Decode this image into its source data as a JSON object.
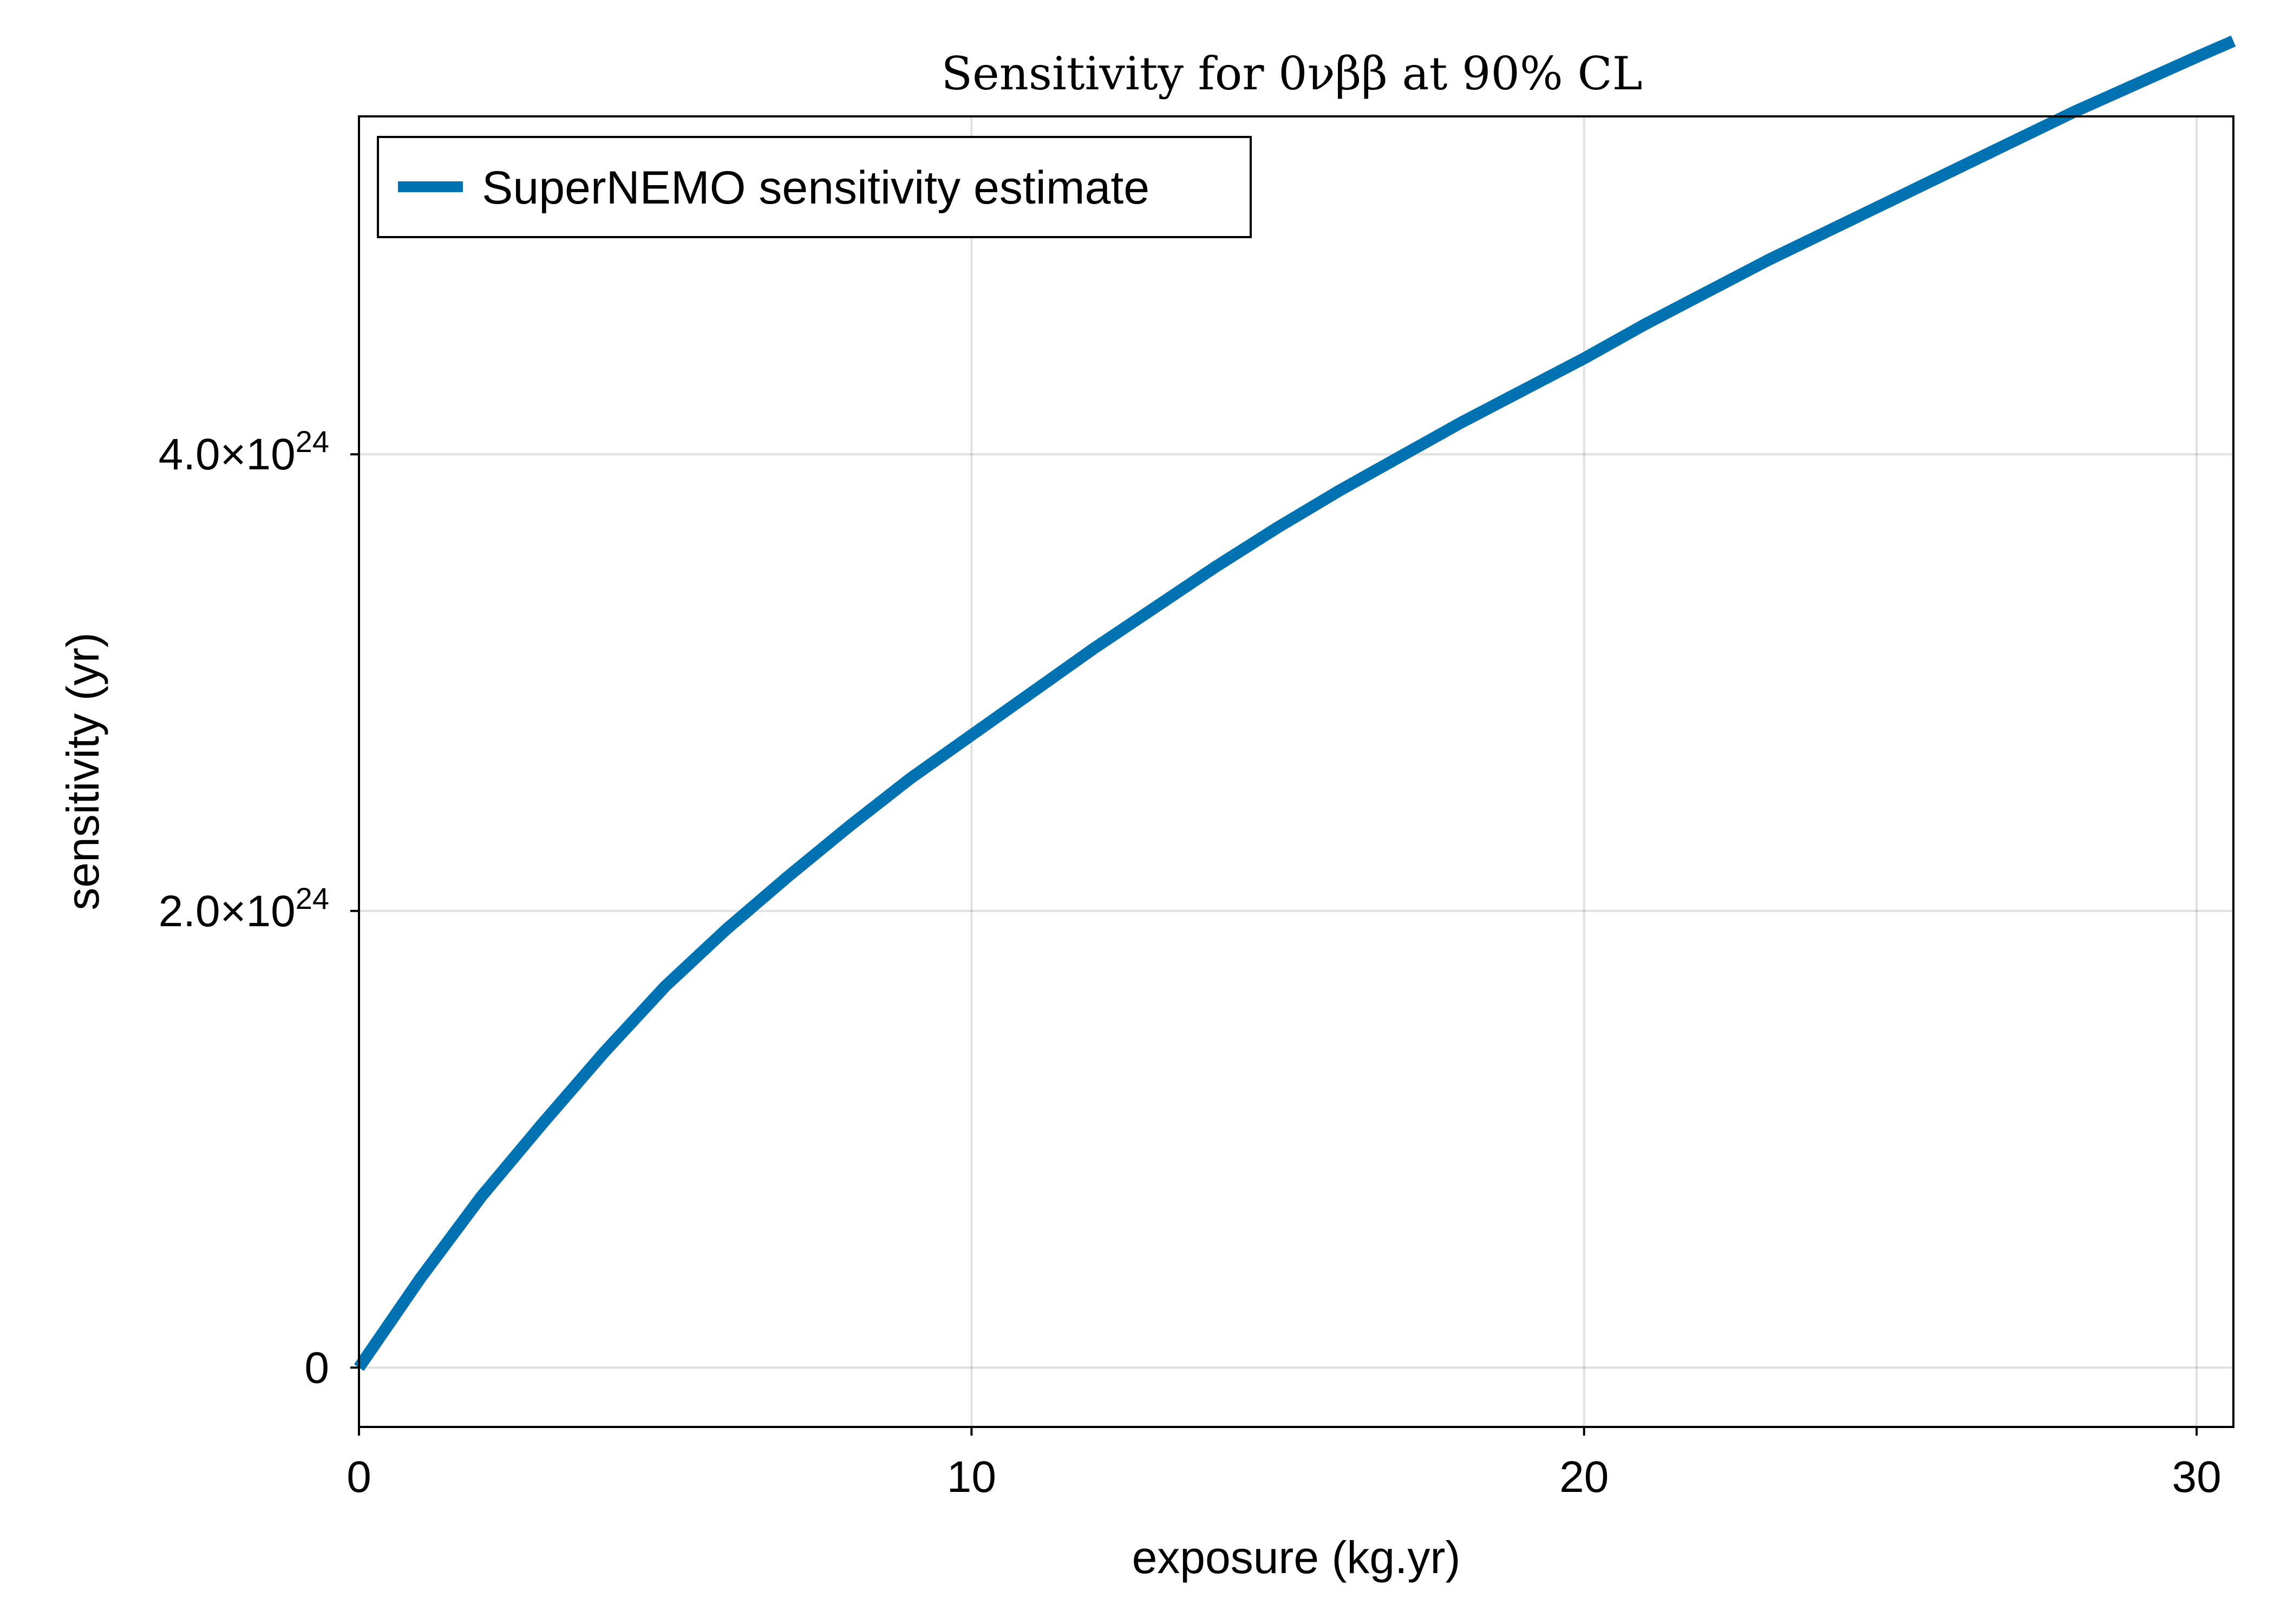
{
  "chart_data": {
    "type": "line",
    "title": "Sensitivity for 0νββ at 90% CL",
    "xlabel": "exposure (kg.yr)",
    "ylabel": "sensitivity (yr)",
    "xlim": [
      0,
      30.6
    ],
    "ylim": [
      -2.6e+23,
      5.48e+24
    ],
    "xticks": [
      {
        "value": 0,
        "label": "0"
      },
      {
        "value": 10,
        "label": "10"
      },
      {
        "value": 20,
        "label": "20"
      },
      {
        "value": 30,
        "label": "30"
      }
    ],
    "yticks": [
      {
        "value": 0,
        "label": "0",
        "mantissa": "",
        "exponent": ""
      },
      {
        "value": 2e+24,
        "label": "2.0×10²⁴",
        "mantissa": "2.0×10",
        "exponent": "24"
      },
      {
        "value": 4e+24,
        "label": "4.0×10²⁴",
        "mantissa": "4.0×10",
        "exponent": "24"
      }
    ],
    "grid": true,
    "legend_position": "top-left",
    "series": [
      {
        "name": "SuperNEMO sensitivity estimate",
        "color": "#0072b2",
        "x": [
          0,
          1,
          2,
          3,
          4,
          5,
          6,
          7,
          8,
          9,
          10,
          11,
          12,
          13,
          14,
          15,
          16,
          17,
          18,
          19,
          20,
          21,
          22,
          23,
          24,
          25,
          26,
          27,
          28,
          29,
          30,
          30.6
        ],
        "y": [
          0,
          3.9e+23,
          7.5e+23,
          1.07e+24,
          1.38e+24,
          1.67e+24,
          1.92e+24,
          2.15e+24,
          2.37e+24,
          2.58e+24,
          2.77e+24,
          2.96e+24,
          3.15e+24,
          3.33e+24,
          3.51e+24,
          3.68e+24,
          3.84e+24,
          3.99e+24,
          4.14e+24,
          4.28e+24,
          4.42e+24,
          4.57e+24,
          4.71e+24,
          4.85e+24,
          4.98e+24,
          5.11e+24,
          5.24e+24,
          5.37e+24,
          5.5e+24,
          5.62e+24,
          5.74e+24,
          5.81e+24
        ]
      }
    ]
  }
}
